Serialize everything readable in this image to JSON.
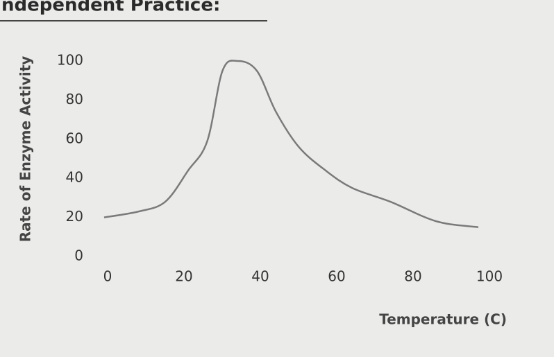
{
  "chart_data": {
    "type": "line",
    "title": "ndependent Practice:",
    "xlabel": "Temperature (C)",
    "ylabel": "Rate of Enzyme Activity",
    "x": [
      0,
      9,
      16,
      22,
      27,
      31,
      35,
      40,
      45,
      51,
      58,
      65,
      75,
      87,
      98
    ],
    "values": [
      20,
      23,
      28,
      44,
      59,
      95,
      100,
      95,
      74,
      56,
      44,
      35,
      28,
      18,
      15
    ],
    "color": "#7a7a7a",
    "xlim": [
      0,
      100
    ],
    "ylim": [
      0,
      100
    ],
    "xticks": [
      0,
      20,
      40,
      60,
      80,
      100
    ],
    "yticks": [
      0,
      20,
      40,
      60,
      80,
      100
    ]
  }
}
